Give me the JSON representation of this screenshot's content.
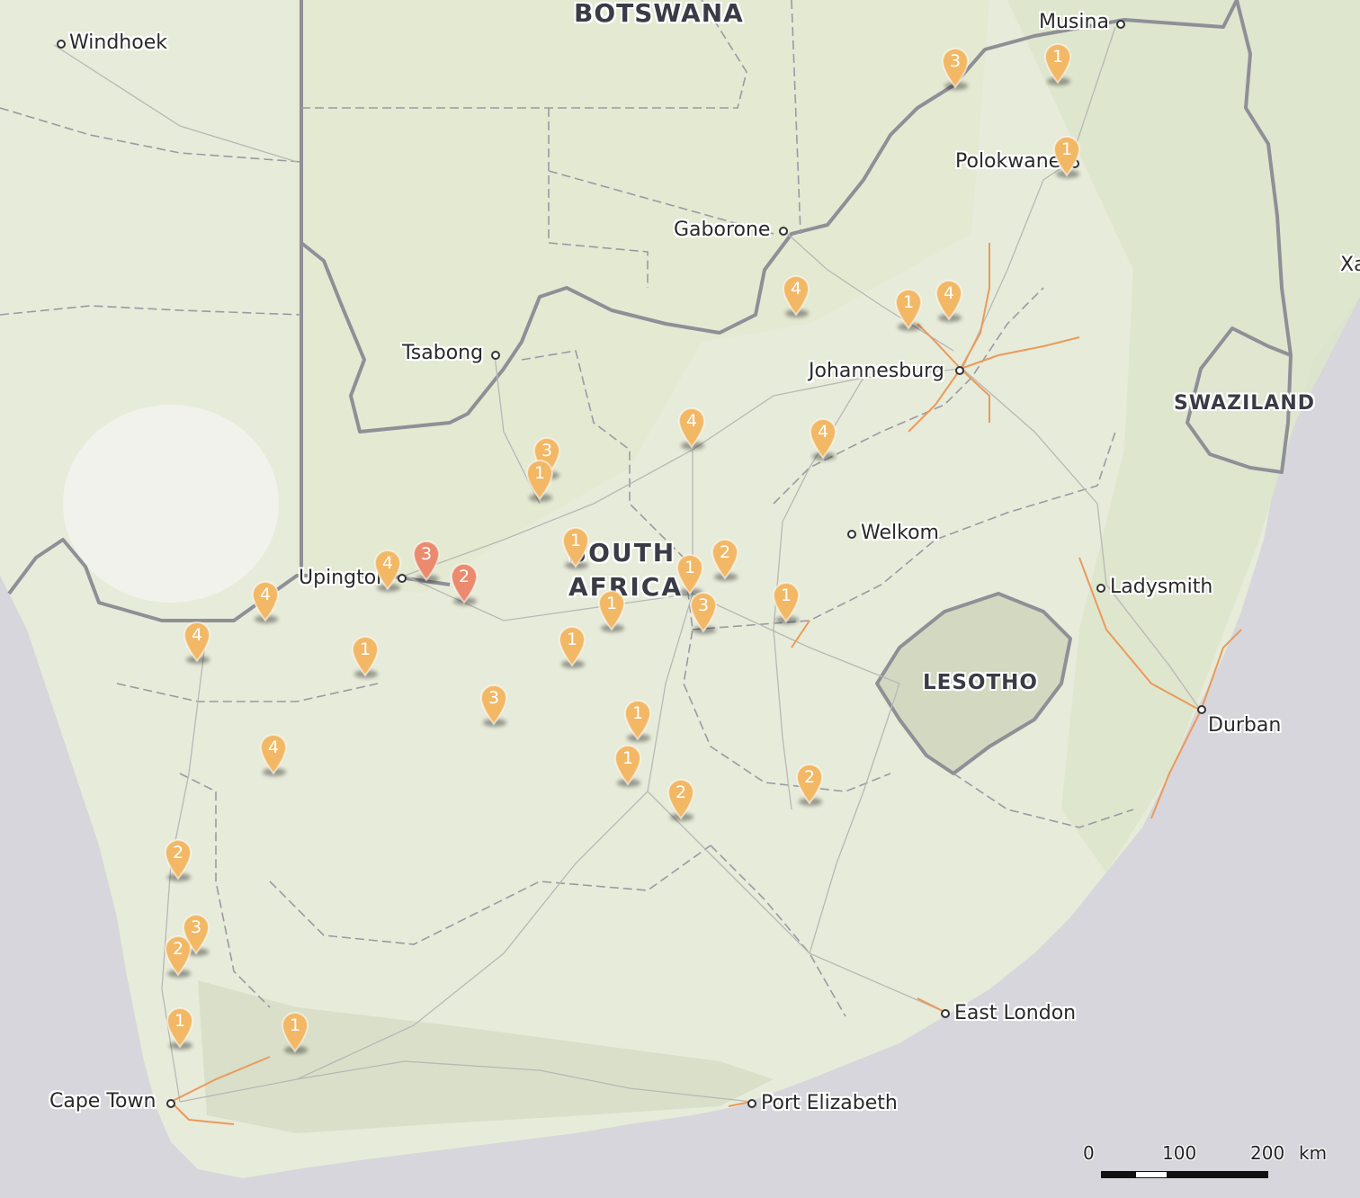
{
  "countries": {
    "botswana": "BOTSWANA",
    "south_africa_line1": "SOUTH",
    "south_africa_line2": "AFRICA",
    "lesotho": "LESOTHO",
    "swaziland": "SWAZILAND"
  },
  "cities": {
    "windhoek": "Windhoek",
    "musina": "Musina",
    "polokwane": "Polokwane",
    "gaborone": "Gaborone",
    "tsabong": "Tsabong",
    "johannesburg": "Johannesburg",
    "welkom": "Welkom",
    "upington": "Upington",
    "ladysmith": "Ladysmith",
    "durban": "Durban",
    "east_london": "East London",
    "port_elizabeth": "Port Elizabeth",
    "cape_town": "Cape Town",
    "xa": "Xa"
  },
  "markers": [
    {
      "count": "3",
      "color": "#f2b866"
    },
    {
      "count": "1",
      "color": "#f2b866"
    },
    {
      "count": "1",
      "color": "#f2b866"
    },
    {
      "count": "4",
      "color": "#f2b866"
    },
    {
      "count": "1",
      "color": "#f2b866"
    },
    {
      "count": "4",
      "color": "#f2b866"
    },
    {
      "count": "4",
      "color": "#f2b866"
    },
    {
      "count": "4",
      "color": "#f2b866"
    },
    {
      "count": "3",
      "color": "#f2b866"
    },
    {
      "count": "1",
      "color": "#f2b866"
    },
    {
      "count": "1",
      "color": "#f2b866"
    },
    {
      "count": "4",
      "color": "#f2b866"
    },
    {
      "count": "3",
      "color": "#ea8a6e"
    },
    {
      "count": "2",
      "color": "#ea8a6e"
    },
    {
      "count": "4",
      "color": "#f2b866"
    },
    {
      "count": "2",
      "color": "#f2b866"
    },
    {
      "count": "1",
      "color": "#f2b866"
    },
    {
      "count": "1",
      "color": "#f2b866"
    },
    {
      "count": "3",
      "color": "#f2b866"
    },
    {
      "count": "1",
      "color": "#f2b866"
    },
    {
      "count": "4",
      "color": "#f2b866"
    },
    {
      "count": "1",
      "color": "#f2b866"
    },
    {
      "count": "1",
      "color": "#f2b866"
    },
    {
      "count": "3",
      "color": "#f2b866"
    },
    {
      "count": "4",
      "color": "#f2b866"
    },
    {
      "count": "1",
      "color": "#f2b866"
    },
    {
      "count": "1",
      "color": "#f2b866"
    },
    {
      "count": "2",
      "color": "#f2b866"
    },
    {
      "count": "2",
      "color": "#f2b866"
    },
    {
      "count": "2",
      "color": "#f2b866"
    },
    {
      "count": "3",
      "color": "#f2b866"
    },
    {
      "count": "2",
      "color": "#f2b866"
    },
    {
      "count": "1",
      "color": "#f2b866"
    },
    {
      "count": "1",
      "color": "#f2b866"
    }
  ],
  "scale": {
    "label_0": "0",
    "label_100": "100",
    "label_200": "200",
    "unit": "km"
  }
}
